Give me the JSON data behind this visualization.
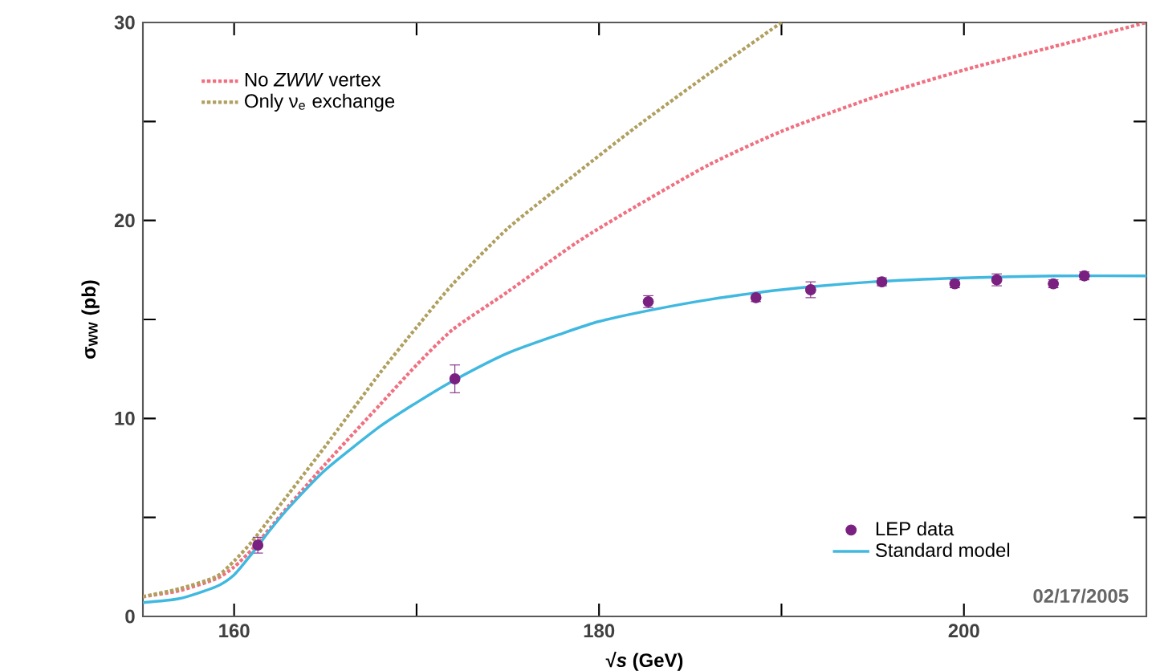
{
  "chart_data": {
    "type": "line",
    "xlabel": "√*s* (GeV)",
    "ylabel": "σ$_{WW}$ (pb)",
    "xlim": [
      155,
      210
    ],
    "xticks": [
      160,
      {
        "value": 170,
        "label": null
      },
      180,
      {
        "value": 190,
        "label": null
      },
      200
    ],
    "ylim": [
      0,
      30
    ],
    "yticks": [
      0,
      {
        "value": 5,
        "label": null
      },
      10,
      {
        "value": 15,
        "label": null
      },
      20,
      {
        "value": 25,
        "label": null
      },
      30
    ],
    "legend": "top left",
    "series": [
      {
        "name": "No *ZWW* vertex",
        "color": "#f07080",
        "line_style": "dotted",
        "marker": "none",
        "x": [
          155,
          157,
          159,
          160,
          161,
          162,
          163,
          165,
          168,
          170,
          172,
          175,
          178.8,
          182,
          186,
          190,
          195,
          200,
          205,
          210
        ],
        "values": [
          1.0,
          1.3,
          1.9,
          2.5,
          3.4,
          4.5,
          5.6,
          7.7,
          10.7,
          12.7,
          14.5,
          16.4,
          18.9,
          20.7,
          22.8,
          24.5,
          26.2,
          27.6,
          28.8,
          30.0
        ]
      },
      {
        "name": "Only ν$_{e}$ exchange",
        "color": "#b0a060",
        "line_style": "dotted",
        "marker": "none",
        "x": [
          155,
          157,
          159,
          160,
          161,
          162,
          163,
          165,
          168,
          170,
          172,
          175,
          178.8,
          182,
          186,
          190
        ],
        "values": [
          1.0,
          1.4,
          2.0,
          2.8,
          3.8,
          5.0,
          6.2,
          8.6,
          12.3,
          14.6,
          16.8,
          19.6,
          22.4,
          24.7,
          27.4,
          30.0
        ]
      },
      {
        "name": "LEP data",
        "type": "scatter",
        "color": "#7a2080",
        "marker": "circle",
        "x": [
          161.3,
          172.1,
          182.7,
          188.6,
          191.6,
          195.5,
          199.5,
          201.8,
          204.9,
          206.6
        ],
        "values": [
          3.6,
          12.0,
          15.9,
          16.1,
          16.5,
          16.9,
          16.8,
          17.0,
          16.8,
          17.2
        ],
        "errors": [
          0.4,
          0.7,
          0.3,
          0.2,
          0.4,
          0.2,
          0.2,
          0.3,
          0.2,
          0.2
        ]
      },
      {
        "name": "Standard model",
        "color": "#40b8e0",
        "line_style": "solid",
        "marker": "none",
        "x": [
          155,
          157,
          159,
          160,
          161,
          162,
          163,
          165,
          168,
          170,
          172,
          175,
          178,
          180,
          183,
          186,
          190,
          195,
          200,
          205,
          210
        ],
        "values": [
          0.7,
          0.9,
          1.5,
          2.1,
          3.2,
          4.4,
          5.5,
          7.4,
          9.6,
          10.8,
          11.9,
          13.3,
          14.3,
          14.9,
          15.5,
          16.0,
          16.5,
          16.9,
          17.1,
          17.2,
          17.2
        ]
      }
    ],
    "annotations": [
      "02/17/2005"
    ]
  }
}
